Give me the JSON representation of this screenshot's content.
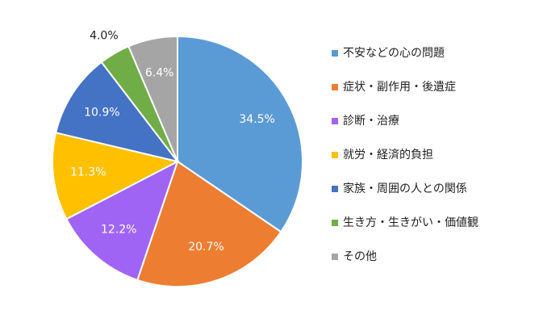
{
  "chart_data": {
    "type": "pie",
    "legend_position": "right",
    "start_angle_deg": 0,
    "direction": "clockwise",
    "slices": [
      {
        "label": "不安などの心の問題",
        "value": 34.5,
        "value_label": "34.5%",
        "color": "#5b9bd5",
        "label_color": "#ffffff",
        "label_placement": "inside"
      },
      {
        "label": "症状・副作用・後遺症",
        "value": 20.7,
        "value_label": "20.7%",
        "color": "#ed7d31",
        "label_color": "#ffffff",
        "label_placement": "inside"
      },
      {
        "label": "診断・治療",
        "value": 12.2,
        "value_label": "12.2%",
        "color": "#a064f5",
        "label_color": "#ffffff",
        "label_placement": "inside"
      },
      {
        "label": "就労・経済的負担",
        "value": 11.3,
        "value_label": "11.3%",
        "color": "#ffc000",
        "label_color": "#ffffff",
        "label_placement": "inside"
      },
      {
        "label": "家族・周囲の人との関係",
        "value": 10.9,
        "value_label": "10.9%",
        "color": "#4472c4",
        "label_color": "#ffffff",
        "label_placement": "inside"
      },
      {
        "label": "生き方・生きがい・価値観",
        "value": 4.0,
        "value_label": "4.0%",
        "color": "#70ad47",
        "label_color": "#1f1f1f",
        "label_placement": "outside"
      },
      {
        "label": "その他",
        "value": 6.4,
        "value_label": "6.4%",
        "color": "#a5a5a5",
        "label_color": "#ffffff",
        "label_placement": "inside"
      }
    ]
  }
}
